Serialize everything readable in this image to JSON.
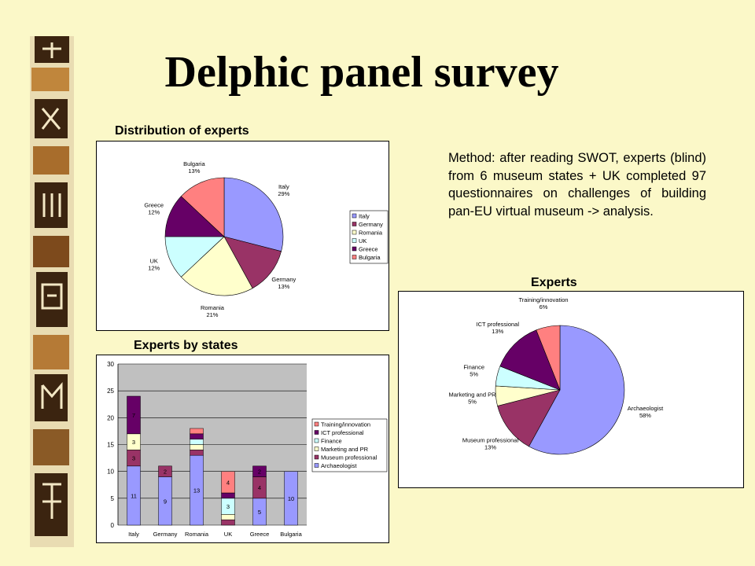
{
  "slide": {
    "title": "Delphic panel survey",
    "caption_distribution": "Distribution of experts",
    "caption_states": "Experts by states",
    "caption_experts": "Experts",
    "method_text": "Method: after reading SWOT, experts (blind) from 6 museum states + UK completed 97 questionnaires on challenges of building pan-EU virtual museum -> analysis."
  },
  "chart_data": [
    {
      "type": "pie",
      "title": "Distribution of experts",
      "labels": [
        "Italy",
        "Germany",
        "Romania",
        "UK",
        "Greece",
        "Bulgaria"
      ],
      "values": [
        29,
        13,
        21,
        12,
        12,
        13
      ],
      "value_labels": [
        "29%",
        "13%",
        "21%",
        "12%",
        "12%",
        "13%"
      ],
      "colors": [
        "#9999ff",
        "#993366",
        "#ffffcc",
        "#ccffff",
        "#660066",
        "#ff8080"
      ],
      "legend": "right"
    },
    {
      "type": "bar",
      "stacked": true,
      "title": "Experts by states",
      "categories": [
        "Italy",
        "Germany",
        "Romania",
        "UK",
        "Greece",
        "Bulgaria"
      ],
      "series": [
        {
          "name": "Archaeologist",
          "color": "#9999ff",
          "values": [
            11,
            9,
            13,
            0,
            5,
            10
          ]
        },
        {
          "name": "Museum professional",
          "color": "#993366",
          "values": [
            3,
            2,
            1,
            1,
            4,
            0
          ]
        },
        {
          "name": "Marketing and PR",
          "color": "#ffffcc",
          "values": [
            3,
            0,
            1,
            1,
            0,
            0
          ]
        },
        {
          "name": "Finance",
          "color": "#ccffff",
          "values": [
            0,
            0,
            1,
            3,
            0,
            0
          ]
        },
        {
          "name": "ICT professional",
          "color": "#660066",
          "values": [
            7,
            0,
            1,
            1,
            2,
            0
          ]
        },
        {
          "name": "Training/innovation",
          "color": "#ff8080",
          "values": [
            0,
            0,
            1,
            4,
            0,
            0
          ]
        }
      ],
      "ylim": [
        0,
        30
      ],
      "yticks": [
        0,
        5,
        10,
        15,
        20,
        25,
        30
      ],
      "grid": true,
      "legend": "right"
    },
    {
      "type": "pie",
      "title": "Experts",
      "labels": [
        "Archaeologist",
        "Museum professional",
        "Marketing and PR",
        "Finance",
        "ICT professional",
        "Training/innovation"
      ],
      "values": [
        58,
        13,
        5,
        5,
        13,
        6
      ],
      "value_labels": [
        "58%",
        "13%",
        "5%",
        "5%",
        "13%",
        "6%"
      ],
      "colors": [
        "#9999ff",
        "#993366",
        "#ffffcc",
        "#ccffff",
        "#660066",
        "#ff8080"
      ]
    }
  ]
}
